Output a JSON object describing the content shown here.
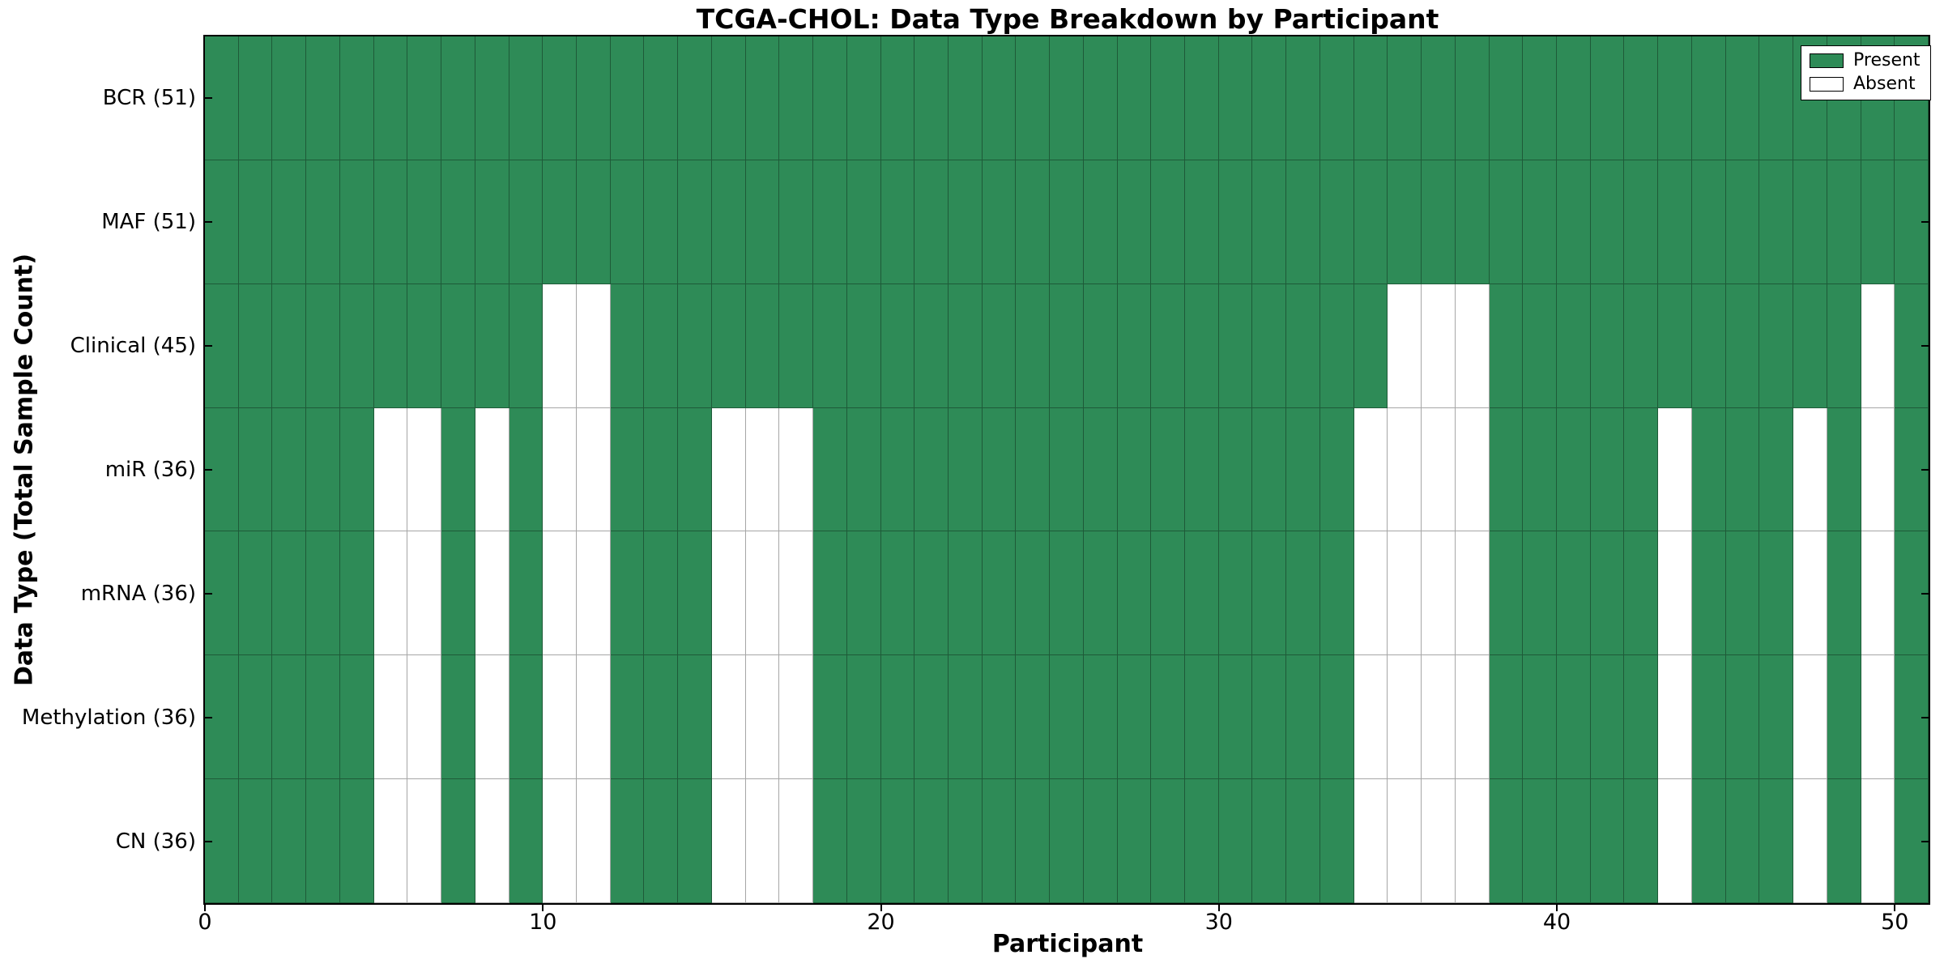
{
  "chart_data": {
    "type": "heatmap",
    "title": "TCGA-CHOL: Data Type Breakdown by Participant",
    "xlabel": "Participant",
    "ylabel": "Data Type (Total Sample Count)",
    "x_ticks": [
      0,
      10,
      20,
      30,
      40,
      50
    ],
    "x_range": [
      0,
      51
    ],
    "n_participants": 51,
    "grid": true,
    "legend_position": "upper right",
    "legend": [
      {
        "label": "Present",
        "color": "#2e8b57"
      },
      {
        "label": "Absent",
        "color": "#ffffff"
      }
    ],
    "colors": {
      "present": "#2e8b57",
      "absent": "#ffffff",
      "spine": "#000000"
    },
    "rows": [
      {
        "label": "BCR (51)",
        "data_type": "BCR",
        "present_count": 51,
        "absent_participants": []
      },
      {
        "label": "MAF (51)",
        "data_type": "MAF",
        "present_count": 51,
        "absent_participants": []
      },
      {
        "label": "Clinical (45)",
        "data_type": "Clinical",
        "present_count": 45,
        "absent_participants": [
          10,
          11,
          35,
          36,
          37,
          49
        ]
      },
      {
        "label": "miR (36)",
        "data_type": "miR",
        "present_count": 36,
        "absent_participants": [
          5,
          6,
          8,
          10,
          11,
          15,
          16,
          17,
          34,
          35,
          36,
          37,
          43,
          47,
          49
        ]
      },
      {
        "label": "mRNA (36)",
        "data_type": "mRNA",
        "present_count": 36,
        "absent_participants": [
          5,
          6,
          8,
          10,
          11,
          15,
          16,
          17,
          34,
          35,
          36,
          37,
          43,
          47,
          49
        ]
      },
      {
        "label": "Methylation (36)",
        "data_type": "Methylation",
        "present_count": 36,
        "absent_participants": [
          5,
          6,
          8,
          10,
          11,
          15,
          16,
          17,
          34,
          35,
          36,
          37,
          43,
          47,
          49
        ]
      },
      {
        "label": "CN (36)",
        "data_type": "CN",
        "present_count": 36,
        "absent_participants": [
          5,
          6,
          8,
          10,
          11,
          15,
          16,
          17,
          34,
          35,
          36,
          37,
          43,
          47,
          49
        ]
      }
    ]
  }
}
